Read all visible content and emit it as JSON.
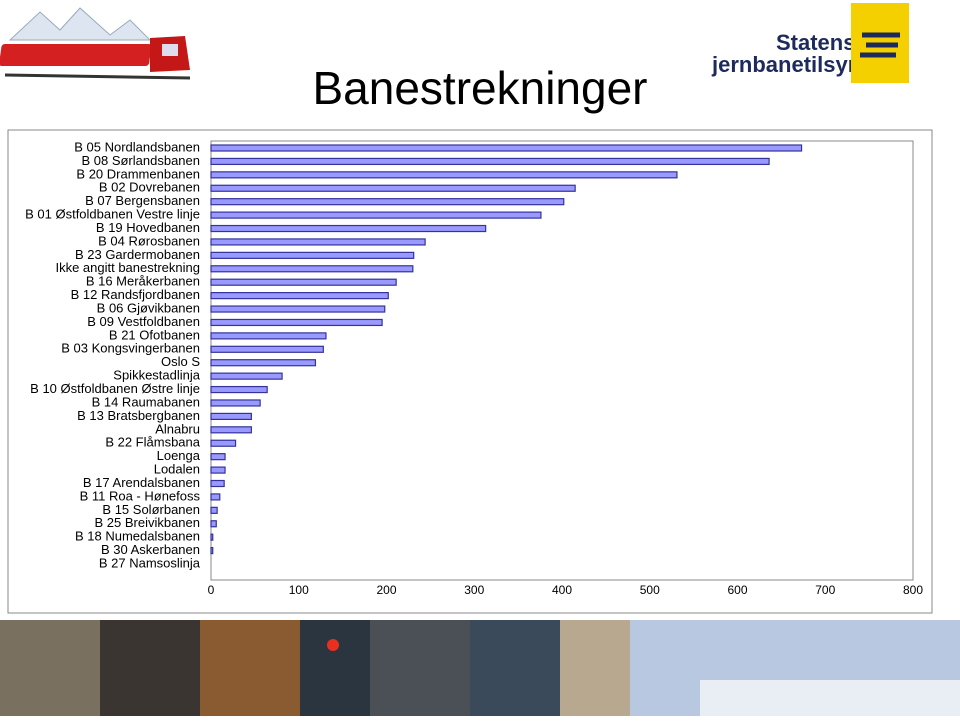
{
  "logo": {
    "line1": "Statens",
    "line2": "jernbanetilsyn"
  },
  "chart_data": {
    "type": "bar",
    "orientation": "horizontal",
    "title": "Banestrekninger",
    "categories": [
      "B 05 Nordlandsbanen",
      "B 08 Sørlandsbanen",
      "B 20 Drammenbanen",
      "B 02 Dovrebanen",
      "B 07 Bergensbanen",
      "B 01 Østfoldbanen Vestre linje",
      "B 19 Hovedbanen",
      "B 04 Rørosbanen",
      "B 23 Gardermobanen",
      "Ikke angitt banestrekning",
      "B 16 Meråkerbanen",
      "B 12 Randsfjordbanen",
      "B 06 Gjøvikbanen",
      "B 09 Vestfoldbanen",
      "B 21 Ofotbanen",
      "B 03 Kongsvingerbanen",
      "Oslo S",
      "Spikkestadlinja",
      "B 10 Østfoldbanen Østre linje",
      "B 14 Raumabanen",
      "B 13 Bratsbergbanen",
      "Alnabru",
      "B 22 Flåmsbana",
      "Loenga",
      "Lodalen",
      "B 17 Arendalsbanen",
      "B 11  Roa - Hønefoss",
      "B 15 Solørbanen",
      "B 25 Breivikbanen",
      "B 18 Numedalsbanen",
      "B 30 Askerbanen",
      "B 27 Namsoslinja"
    ],
    "values": [
      673,
      636,
      531,
      415,
      402,
      376,
      313,
      244,
      231,
      230,
      211,
      202,
      198,
      195,
      131,
      128,
      119,
      81,
      64,
      56,
      46,
      46,
      28,
      16,
      16,
      15,
      10,
      7,
      6,
      2,
      2,
      0
    ],
    "color": "#9999ff",
    "edge_color": "#333399",
    "xlim": [
      0,
      800
    ],
    "xticks": [
      0,
      100,
      200,
      300,
      400,
      500,
      600,
      700,
      800
    ],
    "grid": false
  }
}
